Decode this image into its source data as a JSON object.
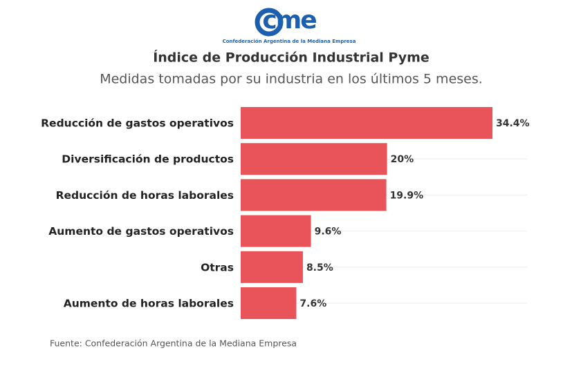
{
  "chart_data": {
    "type": "bar",
    "orientation": "horizontal",
    "logo": "cme",
    "logo_caption": "Confederación Argentina de la Mediana Empresa",
    "title": "Índice de Producción Industrial Pyme",
    "subtitle": "Medidas tomadas por su industria en los últimos 5 meses.",
    "categories": [
      "Reducción de gastos operativos",
      "Diversificación de productos",
      "Reducción de horas laborales",
      "Aumento de gastos operativos",
      "Otras",
      "Aumento de horas laborales"
    ],
    "values": [
      34.4,
      20,
      19.9,
      9.6,
      8.5,
      7.6
    ],
    "value_labels": [
      "34.4%",
      "20%",
      "19.9%",
      "9.6%",
      "8.5%",
      "7.6%"
    ],
    "color": "#e8545a",
    "source": "Fuente: Confederación Argentina de la Mediana Empresa"
  }
}
